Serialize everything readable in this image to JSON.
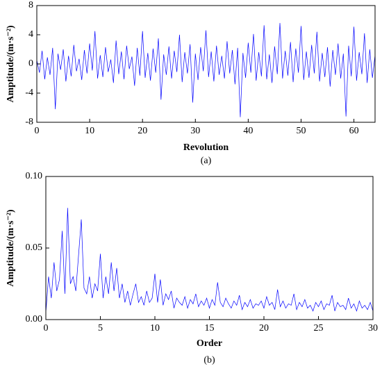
{
  "chart_data": [
    {
      "type": "line",
      "xlabel": "Revolution",
      "ylabel": "Amptitude/(m·s⁻²)",
      "caption": "(a)",
      "color": "#0000ff",
      "xlim": [
        0,
        64
      ],
      "xticks": [
        0,
        10,
        20,
        30,
        40,
        50,
        60
      ],
      "ylim": [
        -8,
        8
      ],
      "yticks": [
        -8,
        -4,
        0,
        4,
        8
      ],
      "x": [
        0,
        0.5,
        1,
        1.5,
        2,
        2.5,
        3,
        3.5,
        4,
        4.5,
        5,
        5.5,
        6,
        6.5,
        7,
        7.5,
        8,
        8.5,
        9,
        9.5,
        10,
        10.5,
        11,
        11.5,
        12,
        12.5,
        13,
        13.5,
        14,
        14.5,
        15,
        15.5,
        16,
        16.5,
        17,
        17.5,
        18,
        18.5,
        19,
        19.5,
        20,
        20.5,
        21,
        21.5,
        22,
        22.5,
        23,
        23.5,
        24,
        24.5,
        25,
        25.5,
        26,
        26.5,
        27,
        27.5,
        28,
        28.5,
        29,
        29.5,
        30,
        30.5,
        31,
        31.5,
        32,
        32.5,
        33,
        33.5,
        34,
        34.5,
        35,
        35.5,
        36,
        36.5,
        37,
        37.5,
        38,
        38.5,
        39,
        39.5,
        40,
        40.5,
        41,
        41.5,
        42,
        42.5,
        43,
        43.5,
        44,
        44.5,
        45,
        45.5,
        46,
        46.5,
        47,
        47.5,
        48,
        48.5,
        49,
        49.5,
        50,
        50.5,
        51,
        51.5,
        52,
        52.5,
        53,
        53.5,
        54,
        54.5,
        55,
        55.5,
        56,
        56.5,
        57,
        57.5,
        58,
        58.5,
        59,
        59.5,
        60,
        60.5,
        61,
        61.5,
        62,
        62.5,
        63,
        63.5,
        64
      ],
      "values": [
        0.5,
        -1.2,
        1.8,
        -2.1,
        0.9,
        -1.5,
        2.2,
        -6.2,
        1.4,
        -0.8,
        2.0,
        -2.4,
        1.1,
        -1.7,
        2.6,
        -1.0,
        0.7,
        -2.2,
        1.9,
        -1.3,
        2.8,
        -0.9,
        4.5,
        -2.0,
        1.2,
        -1.8,
        2.3,
        -1.1,
        0.6,
        -2.6,
        3.2,
        -1.4,
        1.7,
        -2.1,
        2.5,
        -0.7,
        1.0,
        -3.0,
        2.2,
        -1.6,
        4.5,
        -1.9,
        1.5,
        -2.3,
        2.1,
        -1.2,
        3.5,
        -4.9,
        1.3,
        -1.5,
        2.4,
        -2.0,
        1.8,
        -1.1,
        4.0,
        -2.5,
        1.6,
        -1.3,
        2.7,
        -5.3,
        1.4,
        -2.2,
        2.3,
        -1.0,
        4.6,
        -1.8,
        1.7,
        -2.4,
        2.5,
        -1.5,
        1.1,
        -2.0,
        3.1,
        -1.3,
        1.9,
        -2.8,
        2.2,
        -7.3,
        1.5,
        -1.9,
        2.9,
        -1.2,
        4.1,
        -2.3,
        1.6,
        -1.7,
        5.3,
        -2.1,
        1.3,
        -2.6,
        2.4,
        -1.4,
        5.6,
        -2.0,
        1.8,
        -1.6,
        3.0,
        -2.5,
        2.1,
        -1.2,
        5.2,
        -2.2,
        1.7,
        -1.9,
        2.6,
        -1.3,
        4.4,
        -2.4,
        1.5,
        -1.8,
        2.3,
        -3.1,
        1.9,
        -1.5,
        2.8,
        -2.0,
        1.4,
        -7.2,
        2.5,
        -1.7,
        5.1,
        -2.3,
        1.6,
        -1.4,
        4.2,
        -2.6,
        2.0,
        -1.9,
        1.2
      ]
    },
    {
      "type": "line",
      "xlabel": "Order",
      "ylabel": "Amptitude/(m·s⁻²)",
      "caption": "(b)",
      "color": "#0000ff",
      "xlim": [
        0,
        30
      ],
      "xticks": [
        0,
        5,
        10,
        15,
        20,
        25,
        30
      ],
      "ylim": [
        0,
        0.1
      ],
      "yticks": [
        {
          "value": 0,
          "label": "0.00"
        },
        0.05,
        {
          "value": 0.1,
          "label": "0.10"
        }
      ],
      "x": [
        0,
        0.25,
        0.5,
        0.75,
        1,
        1.25,
        1.5,
        1.75,
        2,
        2.25,
        2.5,
        2.75,
        3,
        3.25,
        3.5,
        3.75,
        4,
        4.25,
        4.5,
        4.75,
        5,
        5.25,
        5.5,
        5.75,
        6,
        6.25,
        6.5,
        6.75,
        7,
        7.25,
        7.5,
        7.75,
        8,
        8.25,
        8.5,
        8.75,
        9,
        9.25,
        9.5,
        9.75,
        10,
        10.25,
        10.5,
        10.75,
        11,
        11.25,
        11.5,
        11.75,
        12,
        12.25,
        12.5,
        12.75,
        13,
        13.25,
        13.5,
        13.75,
        14,
        14.25,
        14.5,
        14.75,
        15,
        15.25,
        15.5,
        15.75,
        16,
        16.25,
        16.5,
        16.75,
        17,
        17.25,
        17.5,
        17.75,
        18,
        18.25,
        18.5,
        18.75,
        19,
        19.25,
        19.5,
        19.75,
        20,
        20.25,
        20.5,
        20.75,
        21,
        21.25,
        21.5,
        21.75,
        22,
        22.25,
        22.5,
        22.75,
        23,
        23.25,
        23.5,
        23.75,
        24,
        24.25,
        24.5,
        24.75,
        25,
        25.25,
        25.5,
        25.75,
        26,
        26.25,
        26.5,
        26.75,
        27,
        27.25,
        27.5,
        27.75,
        28,
        28.25,
        28.5,
        28.75,
        29,
        29.25,
        29.5,
        29.75,
        30
      ],
      "values": [
        0.005,
        0.03,
        0.015,
        0.04,
        0.02,
        0.028,
        0.062,
        0.018,
        0.078,
        0.025,
        0.03,
        0.02,
        0.045,
        0.07,
        0.022,
        0.018,
        0.03,
        0.015,
        0.025,
        0.02,
        0.046,
        0.015,
        0.03,
        0.018,
        0.04,
        0.02,
        0.036,
        0.015,
        0.025,
        0.012,
        0.02,
        0.01,
        0.018,
        0.025,
        0.012,
        0.016,
        0.01,
        0.02,
        0.012,
        0.015,
        0.032,
        0.012,
        0.028,
        0.01,
        0.018,
        0.014,
        0.02,
        0.008,
        0.015,
        0.012,
        0.01,
        0.016,
        0.008,
        0.014,
        0.011,
        0.018,
        0.009,
        0.013,
        0.01,
        0.015,
        0.008,
        0.014,
        0.01,
        0.026,
        0.012,
        0.009,
        0.015,
        0.011,
        0.008,
        0.013,
        0.01,
        0.017,
        0.007,
        0.012,
        0.009,
        0.014,
        0.008,
        0.011,
        0.01,
        0.013,
        0.008,
        0.016,
        0.01,
        0.012,
        0.007,
        0.021,
        0.009,
        0.013,
        0.008,
        0.011,
        0.01,
        0.018,
        0.007,
        0.012,
        0.009,
        0.014,
        0.008,
        0.01,
        0.006,
        0.012,
        0.009,
        0.013,
        0.007,
        0.011,
        0.01,
        0.017,
        0.006,
        0.012,
        0.009,
        0.01,
        0.007,
        0.015,
        0.008,
        0.011,
        0.006,
        0.013,
        0.008,
        0.01,
        0.007,
        0.012,
        0.006
      ]
    }
  ]
}
